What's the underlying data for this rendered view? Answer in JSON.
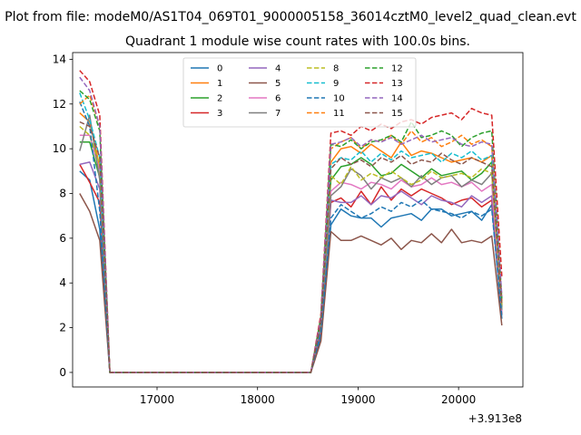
{
  "chart_data": {
    "type": "line",
    "suptitle": "Plot from file: modeM0/AS1T04_069T01_9000005158_36014cztM0_level2_quad_clean.evt",
    "title": "Quadrant 1 module wise count rates with 100.0s bins.",
    "xlabel": "",
    "ylabel": "",
    "x_offset_label": "+3.913e8",
    "xlim": [
      16160,
      20640
    ],
    "ylim": [
      -0.65,
      14.3
    ],
    "x_ticks": [
      17000,
      18000,
      19000,
      20000
    ],
    "x_tick_labels": [
      "17000",
      "18000",
      "19000",
      "20000"
    ],
    "y_ticks": [
      0,
      2,
      4,
      6,
      8,
      10,
      12,
      14
    ],
    "y_tick_labels": [
      "0",
      "2",
      "4",
      "6",
      "8",
      "10",
      "12",
      "14"
    ],
    "legend_position": "upper center",
    "x": [
      16230,
      16330,
      16430,
      16530,
      16630,
      16730,
      16830,
      16930,
      17030,
      17130,
      17230,
      17330,
      17430,
      17530,
      17630,
      17730,
      17830,
      17930,
      18030,
      18130,
      18230,
      18330,
      18430,
      18530,
      18630,
      18730,
      18830,
      18930,
      19030,
      19130,
      19230,
      19330,
      19430,
      19530,
      19630,
      19730,
      19830,
      19930,
      20030,
      20130,
      20230,
      20330,
      20430
    ],
    "series": [
      {
        "name": "0",
        "color": "#1f77b4",
        "dash": "solid",
        "values": [
          9.0,
          8.6,
          6.4,
          0.0,
          0.0,
          0.0,
          0.0,
          0.0,
          0.0,
          0.0,
          0.0,
          0.0,
          0.0,
          0.0,
          0.0,
          0.0,
          0.0,
          0.0,
          0.0,
          0.0,
          0.0,
          0.0,
          0.0,
          0.0,
          1.6,
          6.6,
          7.3,
          7.0,
          6.9,
          6.9,
          6.5,
          6.9,
          7.0,
          7.1,
          6.8,
          7.3,
          7.3,
          7.0,
          7.1,
          7.2,
          6.8,
          7.5,
          2.4
        ]
      },
      {
        "name": "1",
        "color": "#ff7f0e",
        "dash": "solid",
        "values": [
          11.6,
          11.2,
          9.2,
          0.0,
          0.0,
          0.0,
          0.0,
          0.0,
          0.0,
          0.0,
          0.0,
          0.0,
          0.0,
          0.0,
          0.0,
          0.0,
          0.0,
          0.0,
          0.0,
          0.0,
          0.0,
          0.0,
          0.0,
          0.0,
          2.3,
          9.4,
          10.0,
          10.1,
          9.8,
          10.2,
          9.9,
          9.6,
          10.3,
          9.7,
          9.9,
          9.8,
          9.6,
          9.4,
          9.5,
          9.6,
          9.4,
          9.7,
          3.0
        ]
      },
      {
        "name": "2",
        "color": "#2ca02c",
        "dash": "solid",
        "values": [
          10.3,
          10.3,
          8.7,
          0.0,
          0.0,
          0.0,
          0.0,
          0.0,
          0.0,
          0.0,
          0.0,
          0.0,
          0.0,
          0.0,
          0.0,
          0.0,
          0.0,
          0.0,
          0.0,
          0.0,
          0.0,
          0.0,
          0.0,
          0.0,
          2.1,
          8.6,
          9.2,
          9.3,
          9.6,
          9.3,
          8.8,
          8.9,
          9.3,
          9.0,
          8.7,
          9.1,
          8.8,
          8.9,
          9.0,
          8.6,
          8.9,
          9.4,
          2.9
        ]
      },
      {
        "name": "3",
        "color": "#d62728",
        "dash": "solid",
        "values": [
          9.3,
          8.5,
          7.6,
          0.0,
          0.0,
          0.0,
          0.0,
          0.0,
          0.0,
          0.0,
          0.0,
          0.0,
          0.0,
          0.0,
          0.0,
          0.0,
          0.0,
          0.0,
          0.0,
          0.0,
          0.0,
          0.0,
          0.0,
          0.0,
          1.8,
          7.6,
          7.8,
          7.4,
          8.1,
          7.5,
          8.3,
          7.7,
          8.2,
          7.9,
          8.2,
          8.0,
          7.8,
          7.5,
          7.7,
          7.8,
          7.4,
          7.7,
          2.6
        ]
      },
      {
        "name": "4",
        "color": "#9467bd",
        "dash": "solid",
        "values": [
          9.3,
          9.4,
          8.2,
          0.0,
          0.0,
          0.0,
          0.0,
          0.0,
          0.0,
          0.0,
          0.0,
          0.0,
          0.0,
          0.0,
          0.0,
          0.0,
          0.0,
          0.0,
          0.0,
          0.0,
          0.0,
          0.0,
          0.0,
          0.0,
          1.9,
          7.7,
          7.6,
          7.6,
          7.9,
          7.5,
          7.9,
          7.8,
          8.1,
          7.8,
          7.5,
          7.9,
          7.7,
          7.6,
          7.4,
          7.9,
          7.6,
          7.9,
          2.7
        ]
      },
      {
        "name": "5",
        "color": "#8c564b",
        "dash": "solid",
        "values": [
          8.0,
          7.2,
          5.9,
          0.0,
          0.0,
          0.0,
          0.0,
          0.0,
          0.0,
          0.0,
          0.0,
          0.0,
          0.0,
          0.0,
          0.0,
          0.0,
          0.0,
          0.0,
          0.0,
          0.0,
          0.0,
          0.0,
          0.0,
          0.0,
          1.4,
          6.3,
          5.9,
          5.9,
          6.1,
          5.9,
          5.7,
          6.0,
          5.5,
          5.9,
          5.8,
          6.2,
          5.8,
          6.4,
          5.8,
          5.9,
          5.8,
          6.1,
          2.1
        ]
      },
      {
        "name": "6",
        "color": "#e377c2",
        "dash": "solid",
        "values": [
          10.6,
          10.6,
          9.0,
          0.0,
          0.0,
          0.0,
          0.0,
          0.0,
          0.0,
          0.0,
          0.0,
          0.0,
          0.0,
          0.0,
          0.0,
          0.0,
          0.0,
          0.0,
          0.0,
          0.0,
          0.0,
          0.0,
          0.0,
          0.0,
          2.1,
          8.1,
          8.5,
          8.4,
          8.2,
          8.5,
          8.4,
          8.2,
          8.6,
          8.3,
          8.4,
          8.7,
          8.4,
          8.5,
          8.3,
          8.5,
          8.1,
          8.4,
          2.7
        ]
      },
      {
        "name": "7",
        "color": "#7f7f7f",
        "dash": "solid",
        "values": [
          9.9,
          11.5,
          8.6,
          0.0,
          0.0,
          0.0,
          0.0,
          0.0,
          0.0,
          0.0,
          0.0,
          0.0,
          0.0,
          0.0,
          0.0,
          0.0,
          0.0,
          0.0,
          0.0,
          0.0,
          0.0,
          0.0,
          0.0,
          0.0,
          2.0,
          7.9,
          8.3,
          9.1,
          8.8,
          8.2,
          8.7,
          8.5,
          8.7,
          8.3,
          8.8,
          8.4,
          8.7,
          8.8,
          8.3,
          8.6,
          8.4,
          8.9,
          2.8
        ]
      },
      {
        "name": "8",
        "color": "#bcbd22",
        "dash": "dashed",
        "values": [
          11.0,
          10.6,
          9.3,
          0.0,
          0.0,
          0.0,
          0.0,
          0.0,
          0.0,
          0.0,
          0.0,
          0.0,
          0.0,
          0.0,
          0.0,
          0.0,
          0.0,
          0.0,
          0.0,
          0.0,
          0.0,
          0.0,
          0.0,
          0.0,
          2.2,
          8.8,
          8.4,
          9.2,
          8.6,
          8.9,
          8.7,
          9.0,
          8.7,
          8.4,
          8.6,
          9.0,
          8.7,
          8.8,
          8.9,
          8.7,
          9.1,
          8.9,
          2.9
        ]
      },
      {
        "name": "9",
        "color": "#17becf",
        "dash": "dashed",
        "values": [
          12.5,
          11.3,
          9.6,
          0.0,
          0.0,
          0.0,
          0.0,
          0.0,
          0.0,
          0.0,
          0.0,
          0.0,
          0.0,
          0.0,
          0.0,
          0.0,
          0.0,
          0.0,
          0.0,
          0.0,
          0.0,
          0.0,
          0.0,
          0.0,
          2.3,
          9.3,
          9.6,
          9.5,
          9.9,
          9.4,
          9.8,
          9.5,
          9.9,
          9.6,
          9.7,
          9.8,
          9.4,
          9.8,
          9.6,
          9.9,
          9.5,
          9.7,
          3.1
        ]
      },
      {
        "name": "10",
        "color": "#1f77b4",
        "dash": "dashed",
        "values": [
          12.1,
          11.0,
          7.2,
          0.0,
          0.0,
          0.0,
          0.0,
          0.0,
          0.0,
          0.0,
          0.0,
          0.0,
          0.0,
          0.0,
          0.0,
          0.0,
          0.0,
          0.0,
          0.0,
          0.0,
          0.0,
          0.0,
          0.0,
          0.0,
          1.8,
          6.9,
          7.5,
          7.2,
          6.9,
          7.1,
          7.4,
          7.2,
          7.6,
          7.4,
          7.7,
          7.3,
          7.2,
          7.1,
          6.9,
          7.2,
          7.0,
          7.3,
          2.5
        ]
      },
      {
        "name": "11",
        "color": "#ff7f0e",
        "dash": "dashed",
        "values": [
          12.0,
          12.4,
          11.0,
          0.0,
          0.0,
          0.0,
          0.0,
          0.0,
          0.0,
          0.0,
          0.0,
          0.0,
          0.0,
          0.0,
          0.0,
          0.0,
          0.0,
          0.0,
          0.0,
          0.0,
          0.0,
          0.0,
          0.0,
          0.0,
          2.4,
          10.0,
          10.3,
          10.5,
          10.0,
          10.4,
          10.3,
          10.6,
          10.2,
          10.8,
          10.3,
          10.5,
          10.1,
          10.3,
          10.6,
          10.2,
          10.4,
          10.1,
          3.2
        ]
      },
      {
        "name": "12",
        "color": "#2ca02c",
        "dash": "dashed",
        "values": [
          12.6,
          12.2,
          10.8,
          0.0,
          0.0,
          0.0,
          0.0,
          0.0,
          0.0,
          0.0,
          0.0,
          0.0,
          0.0,
          0.0,
          0.0,
          0.0,
          0.0,
          0.0,
          0.0,
          0.0,
          0.0,
          0.0,
          0.0,
          0.0,
          2.5,
          10.2,
          10.1,
          10.4,
          10.0,
          10.3,
          10.4,
          10.6,
          10.3,
          11.2,
          10.5,
          10.6,
          10.8,
          10.6,
          10.1,
          10.5,
          10.7,
          10.8,
          3.3
        ]
      },
      {
        "name": "13",
        "color": "#d62728",
        "dash": "dashed",
        "values": [
          13.5,
          13.0,
          11.5,
          0.0,
          0.0,
          0.0,
          0.0,
          0.0,
          0.0,
          0.0,
          0.0,
          0.0,
          0.0,
          0.0,
          0.0,
          0.0,
          0.0,
          0.0,
          0.0,
          0.0,
          0.0,
          0.0,
          0.0,
          0.0,
          2.6,
          10.7,
          10.8,
          10.6,
          11.0,
          10.8,
          11.1,
          10.9,
          11.2,
          11.3,
          11.1,
          11.4,
          11.5,
          11.6,
          11.3,
          11.8,
          11.6,
          11.5,
          4.3
        ]
      },
      {
        "name": "14",
        "color": "#9467bd",
        "dash": "dashed",
        "values": [
          13.2,
          12.6,
          11.0,
          0.0,
          0.0,
          0.0,
          0.0,
          0.0,
          0.0,
          0.0,
          0.0,
          0.0,
          0.0,
          0.0,
          0.0,
          0.0,
          0.0,
          0.0,
          0.0,
          0.0,
          0.0,
          0.0,
          0.0,
          0.0,
          2.4,
          10.2,
          10.3,
          10.5,
          10.1,
          10.4,
          10.3,
          10.5,
          10.2,
          10.4,
          10.6,
          10.3,
          10.4,
          10.5,
          10.2,
          10.1,
          10.3,
          10.2,
          3.4
        ]
      },
      {
        "name": "15",
        "color": "#8c564b",
        "dash": "dashed",
        "values": [
          11.2,
          11.0,
          9.6,
          0.0,
          0.0,
          0.0,
          0.0,
          0.0,
          0.0,
          0.0,
          0.0,
          0.0,
          0.0,
          0.0,
          0.0,
          0.0,
          0.0,
          0.0,
          0.0,
          0.0,
          0.0,
          0.0,
          0.0,
          0.0,
          2.2,
          9.1,
          9.6,
          9.3,
          9.5,
          9.2,
          9.6,
          9.4,
          9.7,
          9.3,
          9.5,
          9.4,
          9.8,
          9.5,
          9.3,
          9.6,
          9.4,
          9.2,
          3.0
        ]
      }
    ]
  }
}
